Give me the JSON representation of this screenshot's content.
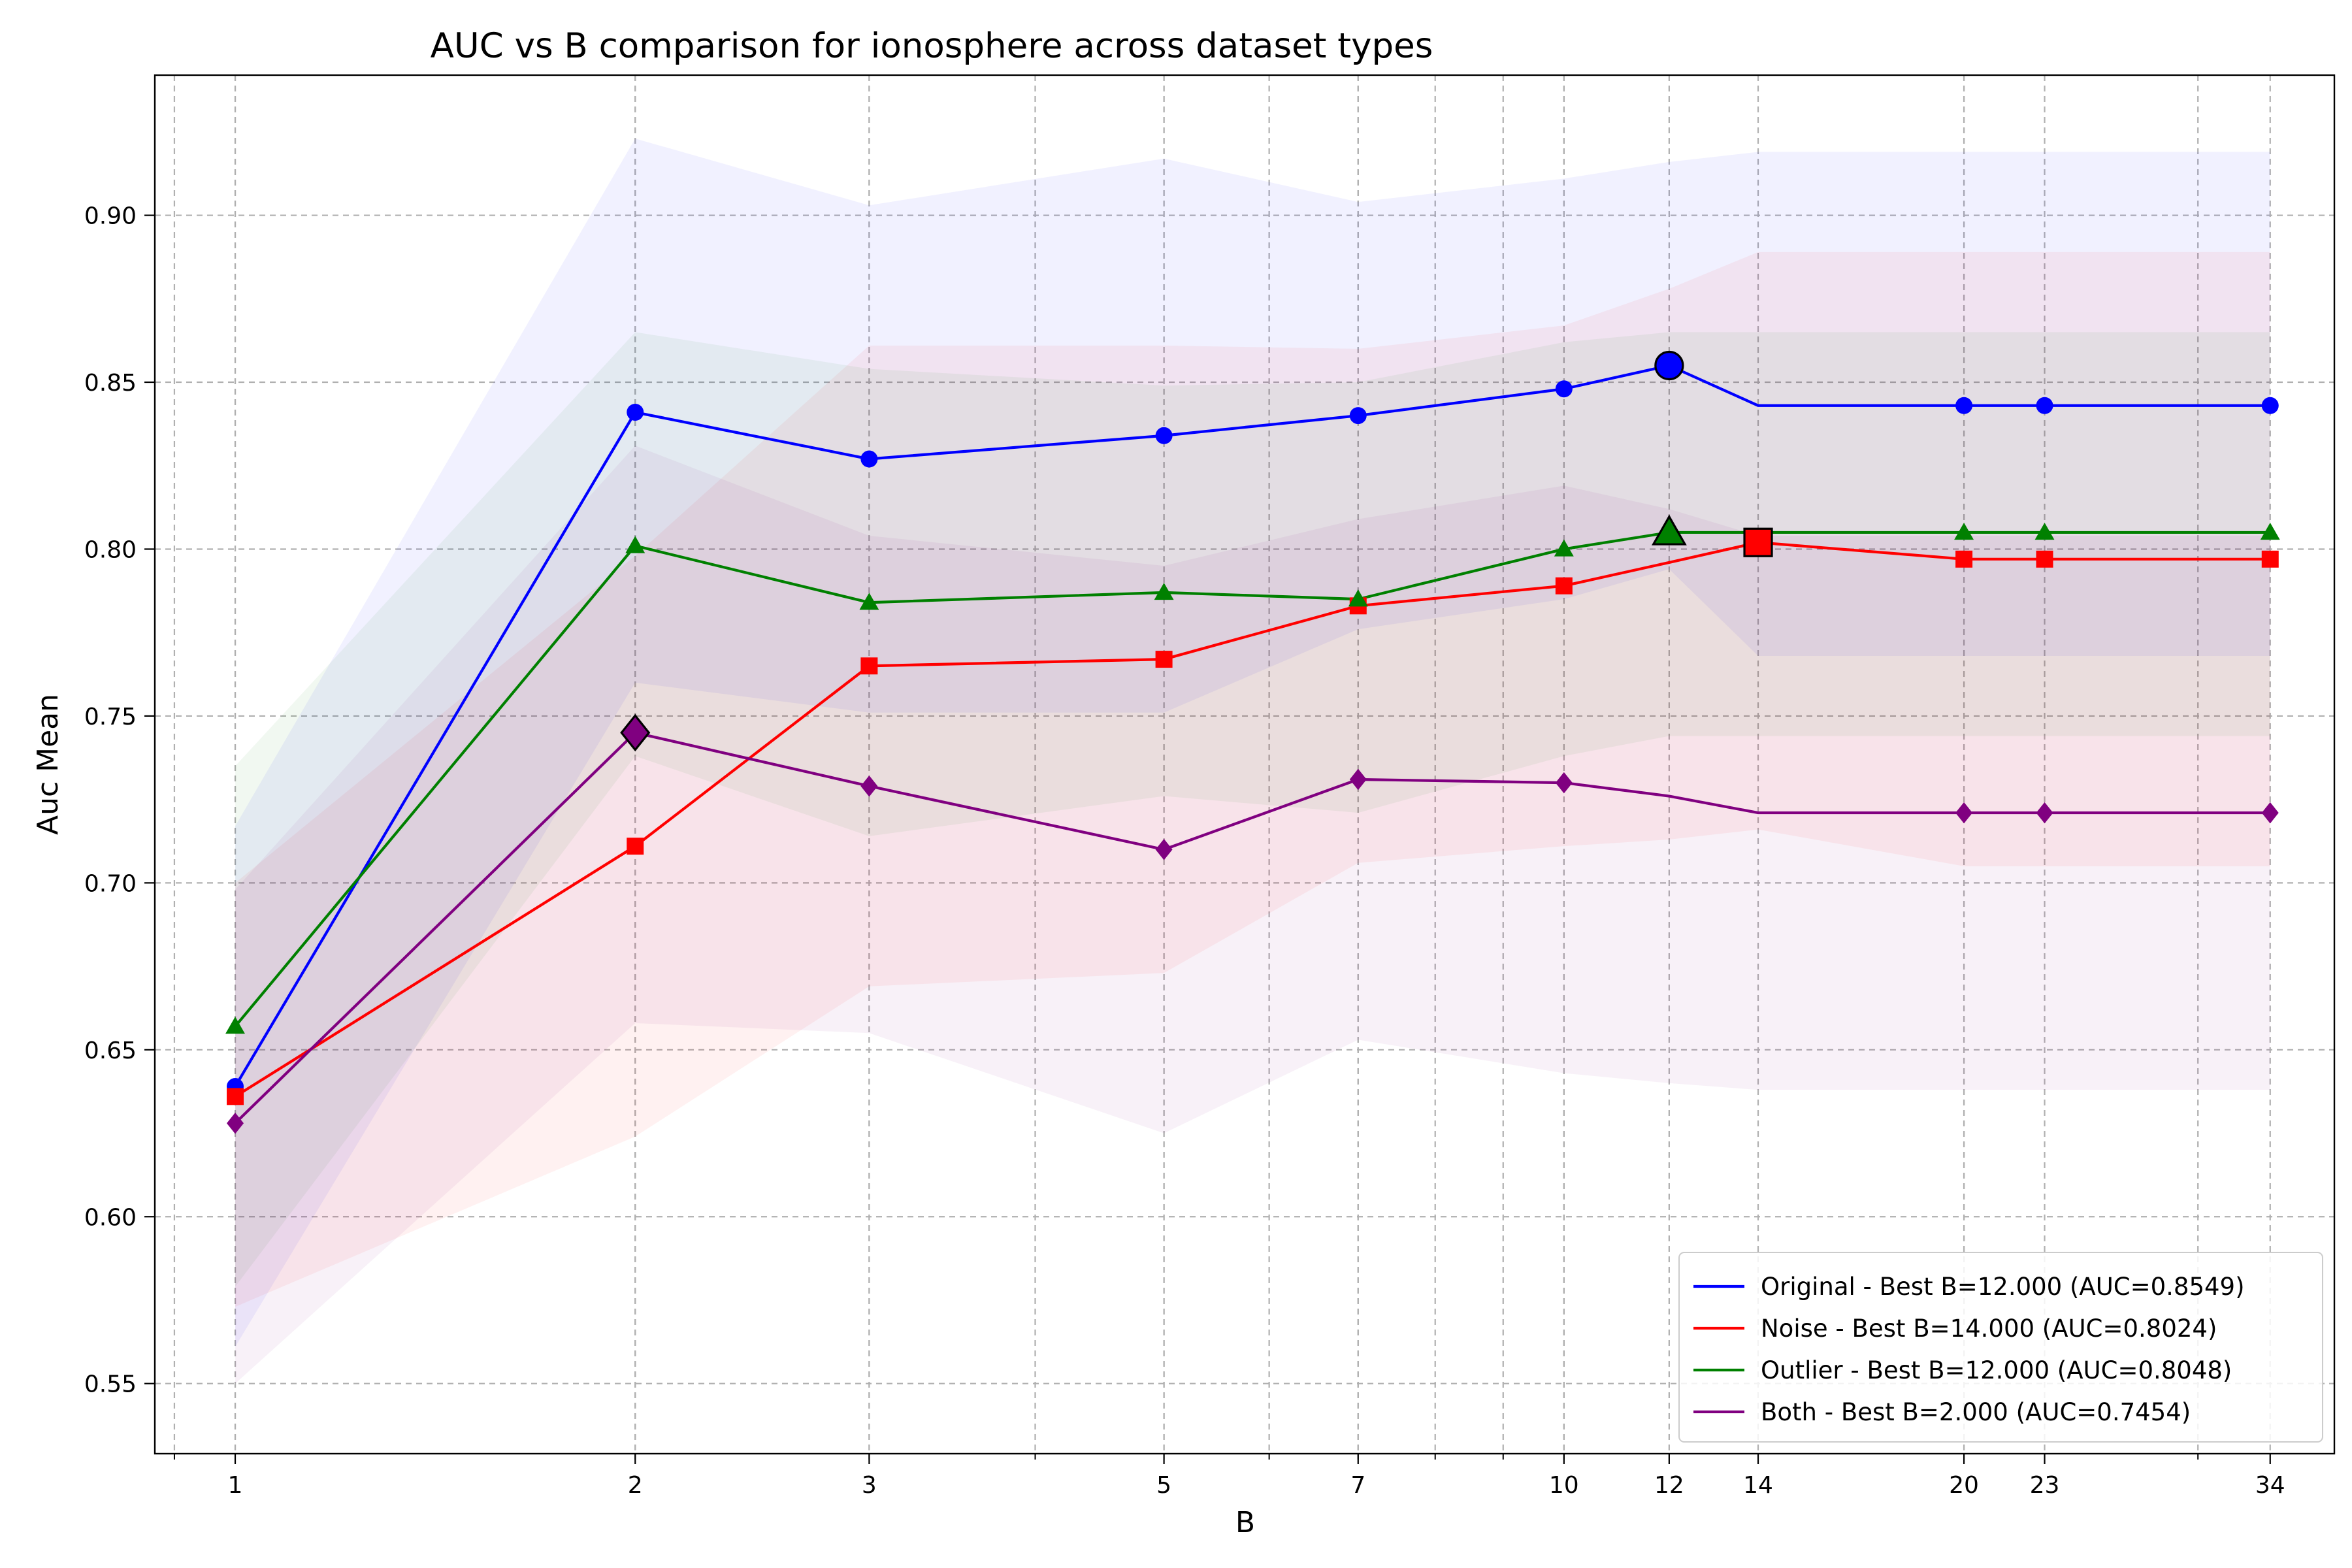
{
  "chart_data": {
    "type": "line",
    "title": "AUC vs B comparison for ionosphere across dataset types",
    "xlabel": "B",
    "ylabel": "Auc Mean",
    "x_scale": "log",
    "xlim": [
      0.87,
      38
    ],
    "ylim": [
      0.529,
      0.942
    ],
    "x_ticks": [
      1,
      2,
      3,
      5,
      7,
      10,
      12,
      14,
      20,
      23,
      34
    ],
    "y_ticks": [
      0.55,
      0.6,
      0.65,
      0.7,
      0.75,
      0.8,
      0.85,
      0.9
    ],
    "y_tick_labels": [
      "0.55",
      "0.60",
      "0.65",
      "0.70",
      "0.75",
      "0.80",
      "0.85",
      "0.90"
    ],
    "grid": true,
    "legend_position": "bottom-right",
    "x": [
      1,
      2,
      3,
      5,
      7,
      10,
      12,
      14,
      20,
      23,
      34
    ],
    "series": [
      {
        "name": "Original - Best B=12.000 (AUC=0.8549)",
        "color": "#0000ff",
        "marker": "circle",
        "values": [
          0.639,
          0.841,
          0.827,
          0.834,
          0.84,
          0.848,
          0.855,
          null,
          0.843,
          0.843,
          0.843
        ],
        "line_values": [
          0.639,
          0.841,
          0.827,
          0.834,
          0.84,
          0.848,
          0.855,
          0.843,
          0.843,
          0.843,
          0.843
        ],
        "band_upper": [
          0.717,
          0.923,
          0.903,
          0.917,
          0.904,
          0.911,
          0.916,
          0.919,
          0.919,
          0.919,
          0.919
        ],
        "band_lower": [
          0.561,
          0.76,
          0.751,
          0.751,
          0.776,
          0.785,
          0.794,
          0.768,
          0.768,
          0.768,
          0.768
        ],
        "best": {
          "x": 12,
          "y": 0.855
        }
      },
      {
        "name": "Noise - Best B=14.000 (AUC=0.8024)",
        "color": "#ff0000",
        "marker": "square",
        "values": [
          0.636,
          0.711,
          0.765,
          0.767,
          0.783,
          0.789,
          null,
          0.802,
          0.797,
          0.797,
          0.797
        ],
        "line_values": [
          0.636,
          0.711,
          0.765,
          0.767,
          0.783,
          0.789,
          0.796,
          0.802,
          0.797,
          0.797,
          0.797
        ],
        "band_upper": [
          0.7,
          0.798,
          0.861,
          0.861,
          0.86,
          0.867,
          0.878,
          0.889,
          0.889,
          0.889,
          0.889
        ],
        "band_lower": [
          0.573,
          0.624,
          0.669,
          0.673,
          0.706,
          0.711,
          0.713,
          0.716,
          0.705,
          0.705,
          0.705
        ],
        "best": {
          "x": 14,
          "y": 0.802
        }
      },
      {
        "name": "Outlier - Best B=12.000 (AUC=0.8048)",
        "color": "#008000",
        "marker": "triangle",
        "values": [
          0.657,
          0.801,
          0.784,
          0.787,
          0.785,
          0.8,
          0.805,
          null,
          0.805,
          0.805,
          0.805
        ],
        "line_values": [
          0.657,
          0.801,
          0.784,
          0.787,
          0.785,
          0.8,
          0.805,
          0.805,
          0.805,
          0.805,
          0.805
        ],
        "band_upper": [
          0.735,
          0.865,
          0.854,
          0.849,
          0.85,
          0.862,
          0.865,
          0.865,
          0.865,
          0.865,
          0.865
        ],
        "band_lower": [
          0.579,
          0.738,
          0.714,
          0.726,
          0.721,
          0.738,
          0.744,
          0.744,
          0.744,
          0.744,
          0.744
        ],
        "best": {
          "x": 12,
          "y": 0.805
        }
      },
      {
        "name": "Both - Best B=2.000 (AUC=0.7454)",
        "color": "#800080",
        "marker": "diamond",
        "values": [
          0.628,
          0.745,
          0.729,
          0.71,
          0.731,
          0.73,
          null,
          null,
          0.721,
          0.721,
          0.721
        ],
        "line_values": [
          0.628,
          0.745,
          0.729,
          0.71,
          0.731,
          0.73,
          0.726,
          0.721,
          0.721,
          0.721,
          0.721
        ],
        "band_upper": [
          0.698,
          0.831,
          0.804,
          0.795,
          0.809,
          0.819,
          0.812,
          0.804,
          0.804,
          0.804,
          0.804
        ],
        "band_lower": [
          0.55,
          0.658,
          0.655,
          0.625,
          0.653,
          0.643,
          0.64,
          0.638,
          0.638,
          0.638,
          0.638
        ],
        "best": {
          "x": 2,
          "y": 0.745
        }
      }
    ]
  }
}
